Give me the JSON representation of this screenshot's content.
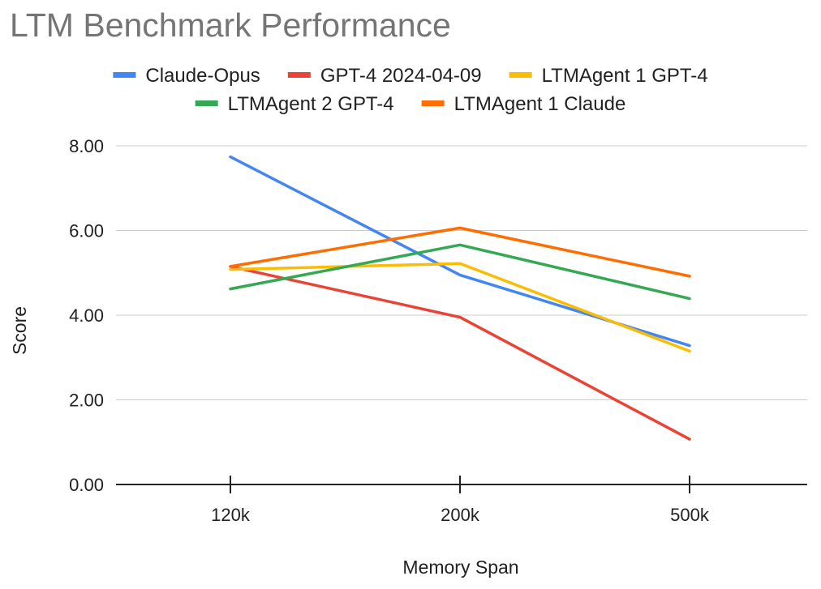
{
  "chart_data": {
    "type": "line",
    "title": "LTM Benchmark Performance",
    "xlabel": "Memory Span",
    "ylabel": "Score",
    "categories": [
      "120k",
      "200k",
      "500k"
    ],
    "ylim": [
      0,
      8
    ],
    "yticks": [
      "0.00",
      "2.00",
      "4.00",
      "6.00",
      "8.00"
    ],
    "grid": true,
    "legend_position": "top",
    "series": [
      {
        "name": "Claude-Opus",
        "color": "#4285f4",
        "values": [
          7.74,
          4.95,
          3.28
        ]
      },
      {
        "name": "GPT-4 2024-04-09",
        "color": "#ea4335",
        "values": [
          5.15,
          3.95,
          1.07
        ]
      },
      {
        "name": "LTMAgent 1 GPT-4",
        "color": "#fbbc04",
        "values": [
          5.08,
          5.22,
          3.15
        ]
      },
      {
        "name": "LTMAgent 2 GPT-4",
        "color": "#34a853",
        "values": [
          4.62,
          5.66,
          4.39
        ]
      },
      {
        "name": "LTMAgent 1 Claude",
        "color": "#ff6d01",
        "values": [
          5.15,
          6.06,
          4.92
        ]
      }
    ]
  }
}
